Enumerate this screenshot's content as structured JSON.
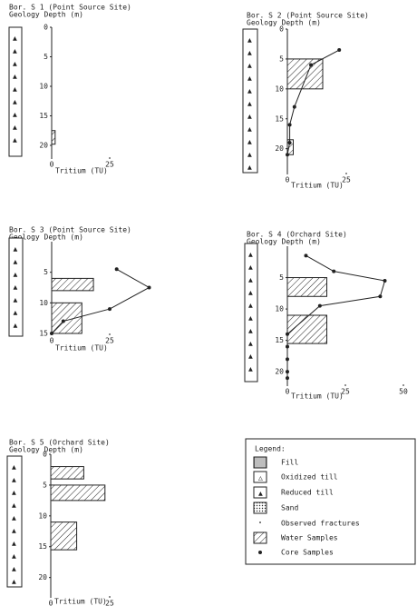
{
  "chart_data": [
    {
      "type": "profile",
      "title": "Bor. S 1 (Point Source Site)",
      "subtitle": "Geology Depth (m)",
      "x_label": "Tritium (TU)",
      "ylim": [
        0,
        22
      ],
      "yticks": [
        0,
        5,
        10,
        15,
        20
      ],
      "xlim": [
        0,
        25
      ],
      "xticks": [
        0,
        25
      ],
      "water_samples": {
        "top": [
          17.5
        ],
        "bottom": [
          19.8
        ],
        "values": [
          1.5
        ]
      },
      "core_samples": {
        "depth": [],
        "values": []
      }
    },
    {
      "type": "profile",
      "title": "Bor. S 2 (Point Source Site)",
      "subtitle": "Geology Depth (m)",
      "x_label": "Tritium (TU)",
      "ylim": [
        0,
        24
      ],
      "yticks": [
        0,
        5,
        10,
        15,
        20
      ],
      "xlim": [
        0,
        25
      ],
      "xticks": [
        0,
        25
      ],
      "water_samples": {
        "top": [
          5,
          18.5
        ],
        "bottom": [
          10,
          21
        ],
        "values": [
          15,
          2.5
        ]
      },
      "core_samples": {
        "depth": [
          3.5,
          6,
          13,
          16,
          19,
          21
        ],
        "values": [
          22,
          10,
          3,
          1,
          1,
          0
        ]
      }
    },
    {
      "type": "profile",
      "title": "Bor. S 3 (Point Source Site)",
      "subtitle": "Geology Depth (m)",
      "x_label": "Tritium (TU)",
      "ylim": [
        0,
        15
      ],
      "yticks": [
        5,
        10,
        15
      ],
      "xlim": [
        0,
        25
      ],
      "xticks": [
        0,
        25
      ],
      "water_samples": {
        "top": [
          6,
          10
        ],
        "bottom": [
          8,
          15
        ],
        "values": [
          18,
          13
        ]
      },
      "core_samples": {
        "depth": [
          4.5,
          7.5,
          11,
          13,
          15
        ],
        "values": [
          28,
          42,
          25,
          5,
          0
        ]
      }
    },
    {
      "type": "profile",
      "title": "Bor. S 4 (Orchard Site)",
      "subtitle": "Geology Depth (m)",
      "x_label": "Tritium (TU)",
      "ylim": [
        0,
        22
      ],
      "yticks": [
        5,
        10,
        15,
        20
      ],
      "xlim": [
        0,
        50
      ],
      "xticks": [
        0,
        25,
        50
      ],
      "water_samples": {
        "top": [
          5,
          11
        ],
        "bottom": [
          8,
          15.5
        ],
        "values": [
          17,
          17
        ]
      },
      "core_samples": {
        "depth": [
          1.5,
          4,
          5.5,
          8,
          9.5,
          14,
          16,
          18,
          20,
          21
        ],
        "values": [
          8,
          20,
          42,
          40,
          14,
          0,
          0,
          0,
          0,
          0
        ]
      }
    },
    {
      "type": "profile",
      "title": "Bor. S 5 (Orchard Site)",
      "subtitle": "Geology Depth (m)",
      "x_label": "Tritium (TU)",
      "ylim": [
        0,
        23
      ],
      "yticks": [
        0,
        5,
        10,
        15,
        20
      ],
      "xlim": [
        0,
        25
      ],
      "xticks": [
        0,
        25
      ],
      "water_samples": {
        "top": [
          2,
          5,
          11
        ],
        "bottom": [
          4,
          7.5,
          15.5
        ],
        "values": [
          14,
          23,
          11
        ]
      },
      "core_samples": {
        "depth": [],
        "values": []
      }
    }
  ],
  "legend": {
    "title": "Legend:",
    "items": [
      "Fill",
      "Oxidized till",
      "Reduced till",
      "Sand",
      "Observed fractures",
      "Water Samples",
      "Core Samples"
    ]
  }
}
